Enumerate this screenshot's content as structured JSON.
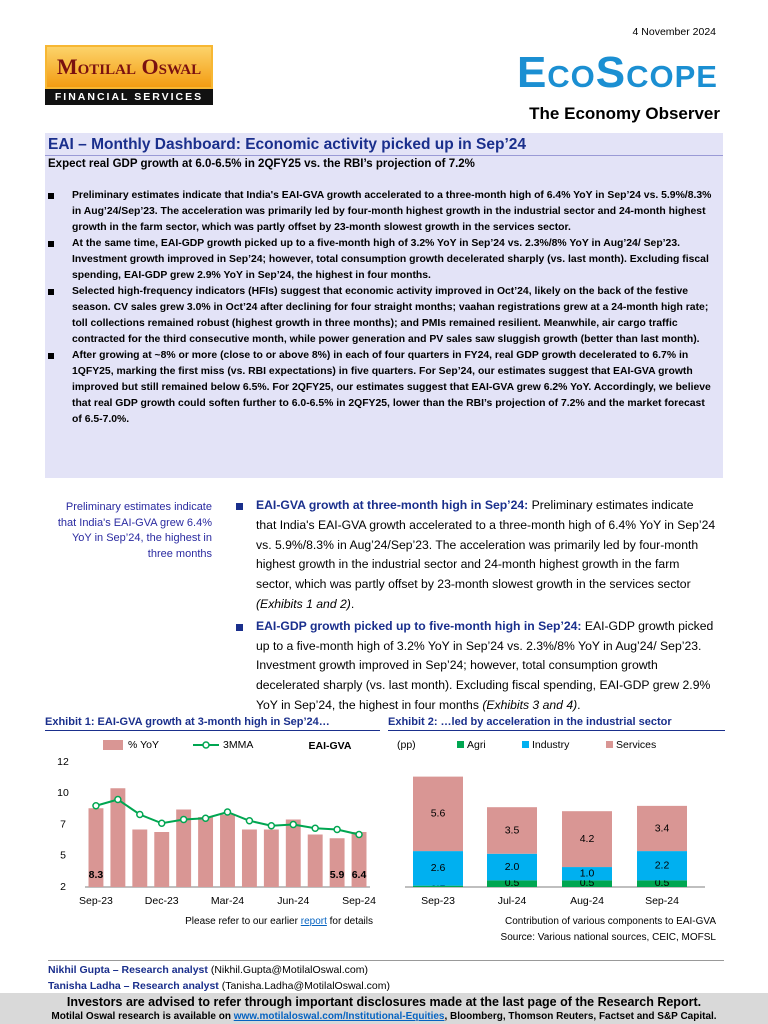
{
  "header": {
    "date": "4 November 2024",
    "logo_name": "Motilal Oswal",
    "logo_tagline": "FINANCIAL SERVICES",
    "product": "EcoScope",
    "product_tagline": "The Economy Observer"
  },
  "title": "EAI – Monthly Dashboard: Economic activity picked up in Sep’24",
  "subtitle": "Expect real GDP growth at 6.0-6.5% in 2QFY25 vs. the RBI’s projection of 7.2%",
  "summary_bullets": [
    "Preliminary estimates indicate that India's EAI-GVA growth accelerated to a three-month high of 6.4% YoY in Sep’24 vs. 5.9%/8.3% in Aug’24/Sep’23. The acceleration was primarily led by four-month highest growth in the industrial sector and 24-month highest growth in the farm sector, which was partly offset by 23-month slowest growth in the services sector.",
    "At the same time, EAI-GDP growth picked up to a five-month high of 3.2% YoY in Sep’24 vs. 2.3%/8% YoY in Aug’24/ Sep’23. Investment growth improved in Sep’24; however, total consumption growth decelerated sharply (vs. last month). Excluding fiscal spending, EAI-GDP grew 2.9% YoY in Sep’24, the highest in four months.",
    "Selected high-frequency indicators (HFIs) suggest that economic activity improved in Oct’24, likely on the back of the festive season. CV sales grew 3.0% in Oct’24 after declining for four straight months; vaahan registrations grew at a 24-month high rate; toll collections remained robust (highest growth in three months); and PMIs remained resilient. Meanwhile, air cargo traffic contracted for the third consecutive month, while power generation and PV sales saw sluggish growth (better than last month).",
    "After growing at ~8% or more (close to or above 8%) in each of four quarters in FY24, real GDP growth decelerated to 6.7% in 1QFY25, marking the first miss (vs. RBI expectations) in five quarters. For Sep’24, our estimates suggest that EAI-GVA growth improved but still remained below 6.5%. For 2QFY25, our estimates suggest that EAI-GVA grew 6.2% YoY. Accordingly, we believe that real GDP growth could soften further to 6.0-6.5% in 2QFY25, lower than the RBI’s projection of 7.2% and the market forecast of 6.5-7.0%."
  ],
  "sidebar_note": "Preliminary estimates indicate that India's EAI-GVA grew 6.4% YoY in Sep’24, the highest in three months",
  "body_bullets": [
    {
      "lead": "EAI-GVA growth at three-month high in Sep’24:",
      "text": "Preliminary estimates indicate that India's EAI-GVA growth accelerated to a three-month high of 6.4% YoY in Sep’24 vs. 5.9%/8.3% in Aug’24/Sep’23. The acceleration was primarily led by four-month highest growth in the industrial sector and 24-month highest growth in the farm sector, which was partly offset by 23-month slowest growth in the services sector",
      "ref": "(Exhibits 1 and 2)",
      "end": "."
    },
    {
      "lead": "EAI-GDP growth picked up to five-month high in Sep’24:",
      "text": "EAI-GDP growth picked up to a five-month high of 3.2% YoY in Sep’24 vs. 2.3%/8% YoY in Aug’24/ Sep’23. Investment growth improved in Sep’24; however, total consumption growth decelerated sharply (vs. last month). Excluding fiscal spending, EAI-GDP grew 2.9% YoY in Sep’24, the highest in four months",
      "ref": "(Exhibits 3 and 4)",
      "end": "."
    }
  ],
  "chart_data": [
    {
      "type": "bar",
      "title": "Exhibit 1: EAI-GVA growth at 3-month high in Sep’24…",
      "annotation": "EAI-GVA",
      "categories": [
        "Sep-23",
        null,
        null,
        "Dec-23",
        null,
        null,
        "Mar-24",
        null,
        null,
        "Jun-24",
        null,
        null,
        "Sep-24"
      ],
      "series": [
        {
          "name": "% YoY",
          "color": "#d99694",
          "values": [
            8.3,
            9.9,
            6.6,
            6.4,
            8.2,
            7.6,
            7.8,
            6.6,
            6.6,
            7.4,
            6.2,
            5.9,
            6.4
          ],
          "value_labels": [
            "8.3",
            null,
            null,
            null,
            null,
            null,
            null,
            null,
            null,
            null,
            null,
            "5.9",
            "6.4"
          ]
        },
        {
          "name": "3MMA",
          "type": "line",
          "color": "#00a651",
          "values": [
            8.5,
            9.0,
            7.8,
            7.1,
            7.4,
            7.5,
            8.0,
            7.3,
            6.9,
            7.0,
            6.7,
            6.6,
            6.2
          ]
        }
      ],
      "ylim": [
        2,
        12
      ],
      "yticks": [
        2,
        {
          "value": 4.5,
          "label": "5"
        },
        7,
        {
          "value": 9.5,
          "label": "10"
        },
        12
      ],
      "note": {
        "before": "Please refer to our earlier ",
        "link": "report",
        "after": " for details"
      }
    },
    {
      "type": "stacked_bar",
      "title": "Exhibit 2: …led by acceleration in the industrial sector",
      "unit_label": "(pp)",
      "categories": [
        "Sep-23",
        "Jul-24",
        "Aug-24",
        "Sep-24"
      ],
      "series": [
        {
          "name": "Agri",
          "color": "#00a651",
          "values": [
            0.1,
            0.5,
            0.5,
            0.5
          ],
          "value_labels": [
            "0.1",
            "0.5",
            "0.5",
            "0.5"
          ]
        },
        {
          "name": "Industry",
          "color": "#00b0f0",
          "values": [
            2.6,
            2.0,
            1.0,
            2.2
          ],
          "value_labels": [
            "2.6",
            "2.0",
            "1.0",
            "2.2"
          ]
        },
        {
          "name": "Services",
          "color": "#d99694",
          "values": [
            5.6,
            3.5,
            4.2,
            3.4
          ],
          "value_labels": [
            "5.6",
            "3.5",
            "4.2",
            "3.4"
          ]
        }
      ],
      "notes": [
        "Contribution of various components to EAI-GVA",
        "Source: Various national sources, CEIC, MOFSL"
      ]
    }
  ],
  "analysts": [
    {
      "name_role": "Nikhil Gupta – Research analyst",
      "email": "(Nikhil.Gupta@MotilalOswal.com)"
    },
    {
      "name_role": "Tanisha Ladha – Research analyst",
      "email": "(Tanisha.Ladha@MotilalOswal.com)"
    }
  ],
  "footer": {
    "disclaimer": "Investors are advised to refer through important disclosures made at the last page of the Research Report.",
    "availability": {
      "before": "Motilal Oswal research is available on ",
      "link": "www.motilaloswal.com/Institutional-Equities",
      "after": ", Bloomberg, Thomson Reuters, Factset and S&P Capital."
    }
  }
}
